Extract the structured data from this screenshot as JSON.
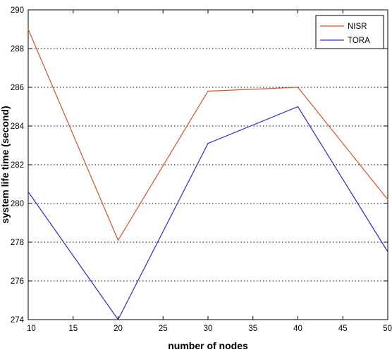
{
  "chart_data": {
    "type": "line",
    "title": "",
    "xlabel": "number of nodes",
    "ylabel": "system life time (second)",
    "xlim": [
      10,
      50
    ],
    "ylim": [
      274,
      290
    ],
    "x_ticks": [
      10,
      15,
      20,
      25,
      30,
      35,
      40,
      45,
      50
    ],
    "y_ticks": [
      274,
      276,
      278,
      280,
      282,
      284,
      286,
      288,
      290
    ],
    "grid": "y-dotted",
    "legend_position": "top-right",
    "x": [
      10,
      20,
      30,
      40,
      50
    ],
    "series": [
      {
        "name": "NISR",
        "color": "#d4532a",
        "values": [
          289.0,
          278.1,
          285.8,
          286.0,
          280.2
        ]
      },
      {
        "name": "TORA",
        "color": "#2b2bd9",
        "values": [
          280.6,
          274.0,
          283.1,
          285.0,
          277.5
        ]
      }
    ]
  }
}
